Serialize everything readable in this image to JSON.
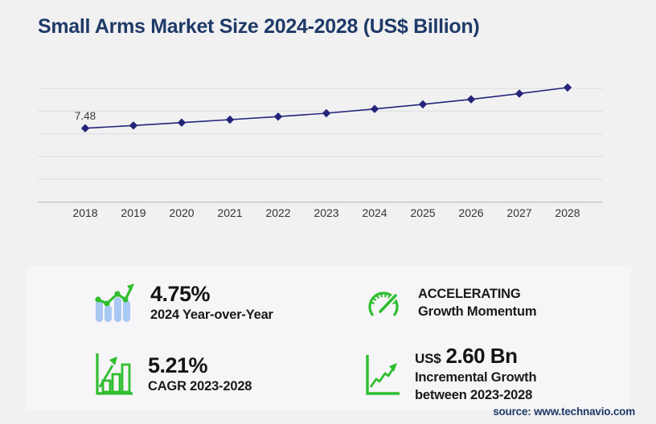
{
  "title": "Small Arms Market Size 2024-2028 (US$ Billion)",
  "chart_data": {
    "type": "line",
    "x": [
      "2018",
      "2019",
      "2020",
      "2021",
      "2022",
      "2023",
      "2024",
      "2025",
      "2026",
      "2027",
      "2028"
    ],
    "values": [
      7.48,
      7.76,
      8.05,
      8.35,
      8.66,
      9.0,
      9.43,
      9.9,
      10.41,
      10.98,
      11.6
    ],
    "first_point_label": "7.48",
    "title": "Small Arms Market Size 2024-2028 (US$ Billion)",
    "xlabel": "",
    "ylabel": "",
    "ylim": [
      0,
      13
    ],
    "grid": true,
    "legend": "none",
    "line_color": "#24247a",
    "marker": "diamond"
  },
  "stats": {
    "yoy": {
      "value": "4.75%",
      "label": "2024 Year-over-Year",
      "icon": "bar-line-growth-icon"
    },
    "momentum": {
      "line1": "ACCELERATING",
      "line2": "Growth Momentum",
      "icon": "speedometer-icon"
    },
    "cagr": {
      "value": "5.21%",
      "label": "CAGR 2023-2028",
      "icon": "bar-chart-rise-icon"
    },
    "incremental": {
      "currency": "US$",
      "value": "2.60 Bn",
      "line1": "Incremental Growth",
      "line2": "between 2023-2028",
      "icon": "line-chart-rise-icon"
    }
  },
  "source": "source: www.technavio.com",
  "colors": {
    "accent_green": "#2fbe2f",
    "accent_blue": "#a9c8f3",
    "line_navy": "#24247a",
    "title_navy": "#1f3a68"
  }
}
